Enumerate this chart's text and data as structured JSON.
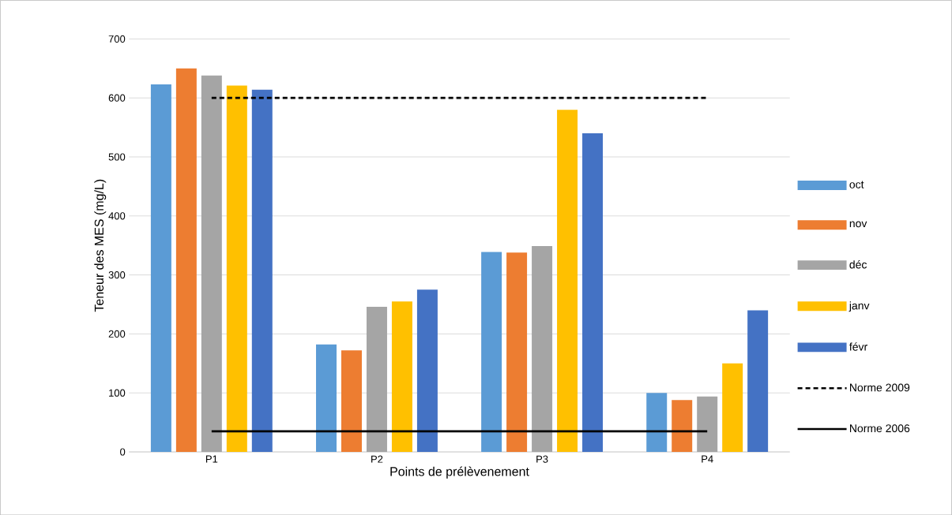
{
  "chart_data": {
    "type": "bar",
    "xlabel": "Points de prélèvenement",
    "ylabel": "Teneur des MES (mg/L)",
    "categories": [
      "P1",
      "P2",
      "P3",
      "P4"
    ],
    "series": [
      {
        "name": "oct",
        "color": "#5b9bd5",
        "values": [
          623,
          182,
          339,
          100
        ]
      },
      {
        "name": "nov",
        "color": "#ed7d31",
        "values": [
          650,
          172,
          338,
          88
        ]
      },
      {
        "name": "déc",
        "color": "#a5a5a5",
        "values": [
          638,
          246,
          349,
          94
        ]
      },
      {
        "name": "janv",
        "color": "#ffc000",
        "values": [
          621,
          255,
          580,
          150
        ]
      },
      {
        "name": "févr",
        "color": "#4472c4",
        "values": [
          614,
          275,
          540,
          240
        ]
      },
      {
        "name": "Norme 2009",
        "type": "line",
        "line_style": "dashed",
        "color": "#000000",
        "values": [
          600,
          600,
          600,
          600
        ]
      },
      {
        "name": "Norme 2006",
        "type": "line",
        "line_style": "solid",
        "color": "#000000",
        "values": [
          35,
          35,
          35,
          35
        ]
      }
    ],
    "ylim": [
      0,
      700
    ],
    "yticks": [
      0,
      100,
      200,
      300,
      400,
      500,
      600,
      700
    ],
    "grid": "y",
    "legend": "right"
  }
}
